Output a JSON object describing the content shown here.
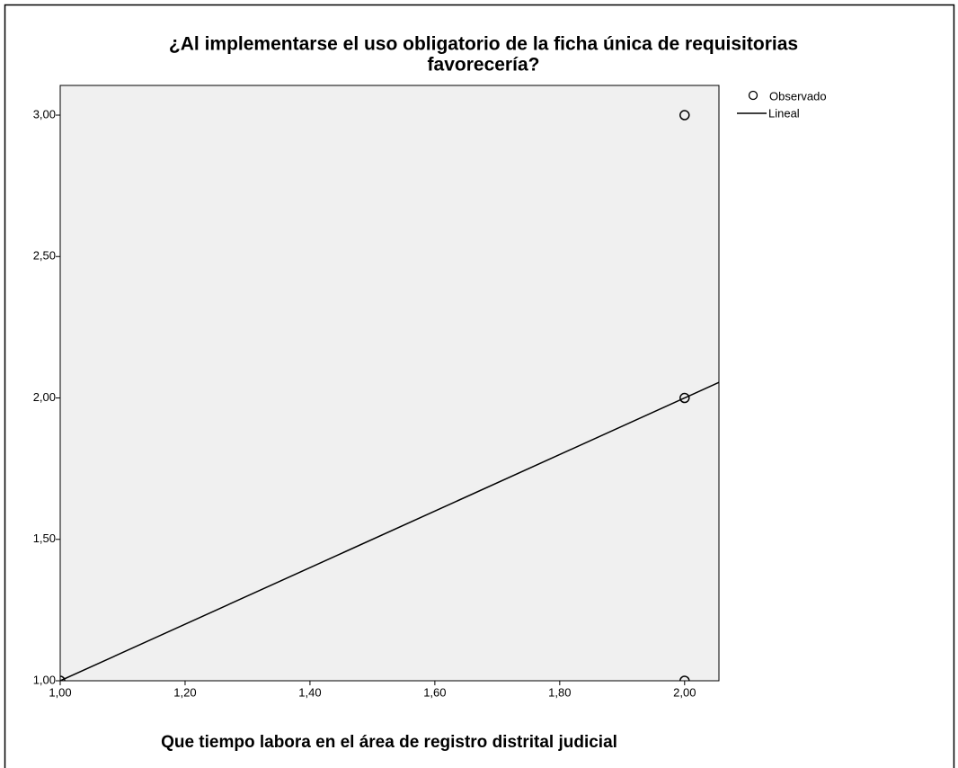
{
  "chart_data": {
    "type": "scatter",
    "title": [
      "¿Al implementarse el uso obligatorio de la ficha única de requisitorias",
      "favorecería?"
    ],
    "x_label": "Que tiempo labora en el área de registro distrital judicial",
    "xlim": [
      1,
      2.055
    ],
    "ylim": [
      1,
      3.105
    ],
    "xticks": [
      {
        "value": 1,
        "label": "1,00"
      },
      {
        "value": 1.2,
        "label": "1,20"
      },
      {
        "value": 1.4,
        "label": "1,40"
      },
      {
        "value": 1.6,
        "label": "1,60"
      },
      {
        "value": 1.8,
        "label": "1,80"
      },
      {
        "value": 2,
        "label": "2,00"
      }
    ],
    "yticks": [
      {
        "value": 1,
        "label": "1,00"
      },
      {
        "value": 1.5,
        "label": "1,50"
      },
      {
        "value": 2,
        "label": "2,00"
      },
      {
        "value": 2.5,
        "label": "2,50"
      },
      {
        "value": 3,
        "label": "3,00"
      }
    ],
    "series": [
      {
        "name": "Observado",
        "color": "#000000",
        "x": [
          1,
          2,
          2,
          2
        ],
        "values": [
          1,
          3,
          2,
          1
        ]
      },
      {
        "name": "Lineal",
        "color": "#000000",
        "x": [
          1,
          2.055
        ],
        "values": [
          1,
          2.055
        ]
      }
    ],
    "background": "#f0f0f0"
  }
}
